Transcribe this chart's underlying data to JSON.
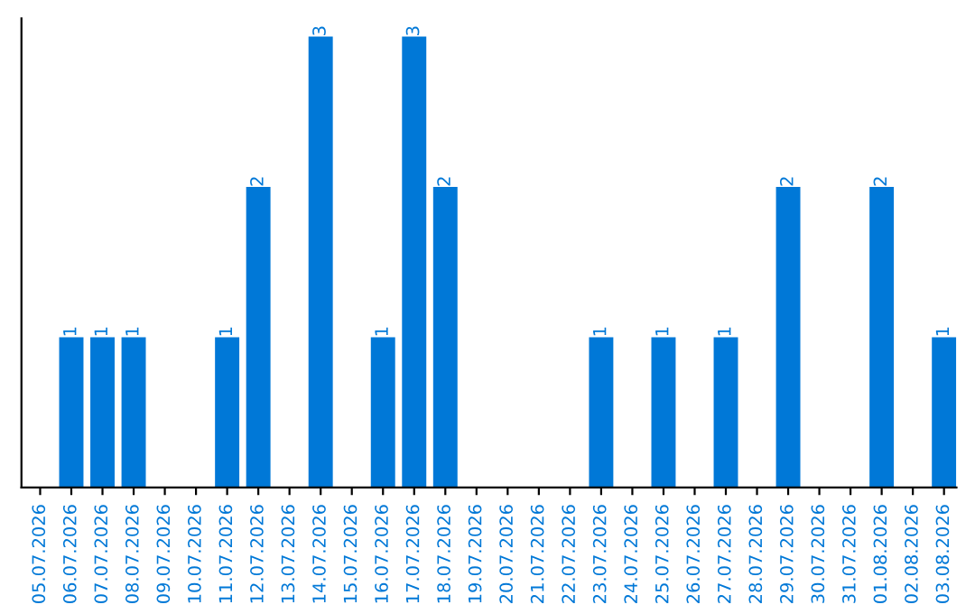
{
  "chart_data": {
    "type": "bar",
    "categories": [
      "05.07.2026",
      "06.07.2026",
      "07.07.2026",
      "08.07.2026",
      "09.07.2026",
      "10.07.2026",
      "11.07.2026",
      "12.07.2026",
      "13.07.2026",
      "14.07.2026",
      "15.07.2026",
      "16.07.2026",
      "17.07.2026",
      "18.07.2026",
      "19.07.2026",
      "20.07.2026",
      "21.07.2026",
      "22.07.2026",
      "23.07.2026",
      "24.07.2026",
      "25.07.2026",
      "26.07.2026",
      "27.07.2026",
      "28.07.2026",
      "29.07.2026",
      "30.07.2026",
      "31.07.2026",
      "01.08.2026",
      "02.08.2026",
      "03.08.2026"
    ],
    "values": [
      0,
      1,
      1,
      1,
      0,
      0,
      1,
      2,
      0,
      3,
      0,
      1,
      3,
      2,
      0,
      0,
      0,
      0,
      1,
      0,
      1,
      0,
      1,
      0,
      2,
      0,
      0,
      2,
      0,
      1
    ],
    "value_labels": [
      null,
      "1",
      "1",
      "1",
      null,
      null,
      "1",
      "2",
      null,
      "3",
      null,
      "1",
      "3",
      "2",
      null,
      null,
      null,
      null,
      "1",
      null,
      "1",
      null,
      "1",
      null,
      "2",
      null,
      null,
      "2",
      null,
      "1"
    ],
    "color": "#0078d7",
    "ylim": [
      0,
      3.12
    ],
    "tick_labels": "x",
    "grid": false,
    "legend": false
  }
}
